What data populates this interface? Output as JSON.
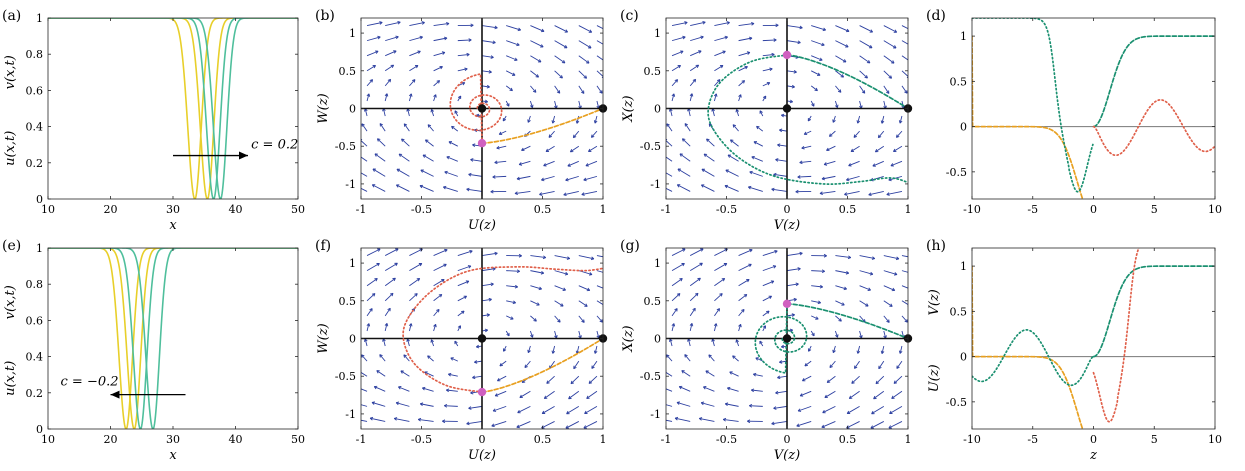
{
  "colors": {
    "yellow": "#e8cf2a",
    "teal": "#4fbf9c",
    "orange": "#e8a020",
    "green": "#1a9070",
    "red": "#e0604a",
    "quiver": "#2c3fa0",
    "pink": "#d060c0",
    "black": "#111111"
  },
  "chart_data": [
    {
      "id": "a",
      "panel_label": "(a)",
      "type": "line",
      "title": "",
      "xlabel": "x",
      "ylabel_parts": [
        "u(x,t)",
        "v(x,t)"
      ],
      "xlim": [
        10,
        50
      ],
      "ylim": [
        0,
        1
      ],
      "xticks": [
        10,
        20,
        30,
        40,
        50
      ],
      "yticks": [
        0,
        0.2,
        0.4,
        0.6,
        0.8,
        1
      ],
      "xtick_labels": [
        "10",
        "20",
        "30",
        "40",
        "50"
      ],
      "ytick_labels": [
        "0",
        "0.2",
        "0.4",
        "0.6",
        "0.8",
        "1"
      ],
      "series": [
        {
          "name": "u(x,t)",
          "color": "yellow",
          "dips_at": [
            33.5,
            35.5
          ],
          "width": 1.6
        },
        {
          "name": "v(x,t)",
          "color": "teal",
          "dips_at": [
            36.5,
            37.6
          ],
          "width": 1.6
        }
      ],
      "annotation": {
        "text": "c = 0.2",
        "arrow_from": [
          30,
          0.24
        ],
        "arrow_to": [
          42,
          0.24
        ],
        "text_at": [
          42.5,
          0.28
        ]
      }
    },
    {
      "id": "b",
      "panel_label": "(b)",
      "type": "phase_plane",
      "xlabel": "U(z)",
      "ylabel": "W(z)",
      "xlim": [
        -1,
        1
      ],
      "ylim": [
        -1.2,
        1.2
      ],
      "xticks": [
        -1,
        -0.5,
        0,
        0.5,
        1
      ],
      "yticks": [
        -1,
        -0.5,
        0,
        0.5,
        1
      ],
      "xtick_labels": [
        "-1",
        "-0.5",
        "0",
        "0.5",
        "1"
      ],
      "ytick_labels": [
        "-1",
        "-0.5",
        "0",
        "0.5",
        "1"
      ],
      "quiver_c": 0.2,
      "trajectories": [
        {
          "name": "dotted spiral",
          "color": "red",
          "style": "dotted",
          "kind": "spiral",
          "start": [
            0,
            -0.46
          ],
          "end": [
            0,
            0
          ],
          "turns": 2.3,
          "stretch_x": 1.3
        },
        {
          "name": "heteroclinic",
          "color": "orange",
          "style": "dashed",
          "kind": "curve",
          "from": [
            0,
            -0.46
          ],
          "to": [
            1,
            0
          ],
          "bulge": 0.15
        }
      ],
      "points": [
        {
          "x": 0,
          "y": 0,
          "color": "black"
        },
        {
          "x": 1,
          "y": 0,
          "color": "black"
        },
        {
          "x": 0,
          "y": -0.46,
          "color": "pink"
        }
      ]
    },
    {
      "id": "c",
      "panel_label": "(c)",
      "type": "phase_plane",
      "xlabel": "V(z)",
      "ylabel": "X(z)",
      "xlim": [
        -1,
        1
      ],
      "ylim": [
        -1.2,
        1.2
      ],
      "xticks": [
        -1,
        -0.5,
        0,
        0.5,
        1
      ],
      "yticks": [
        -1,
        -0.5,
        0,
        0.5,
        1
      ],
      "xtick_labels": [
        "-1",
        "-0.5",
        "0",
        "0.5",
        "1"
      ],
      "ytick_labels": [
        "-1",
        "-0.5",
        "0",
        "0.5",
        "1"
      ],
      "quiver_c": 0.2,
      "trajectories": [
        {
          "name": "heteroclinic",
          "color": "green",
          "style": "dashed",
          "kind": "curve",
          "from": [
            0,
            0.71
          ],
          "to": [
            1,
            0
          ],
          "bulge": 0.12
        },
        {
          "name": "dotted orbit",
          "color": "green",
          "style": "dotted",
          "kind": "orbit_c",
          "points": [
            [
              0,
              0.71
            ],
            [
              -0.3,
              0.62
            ],
            [
              -0.55,
              0.35
            ],
            [
              -0.65,
              0
            ],
            [
              -0.6,
              -0.3
            ],
            [
              -0.4,
              -0.65
            ],
            [
              -0.1,
              -0.9
            ],
            [
              0.3,
              -1.0
            ],
            [
              0.6,
              -0.97
            ],
            [
              0.85,
              -0.92
            ],
            [
              1.0,
              -0.98
            ]
          ]
        }
      ],
      "points": [
        {
          "x": 0,
          "y": 0,
          "color": "black"
        },
        {
          "x": 1,
          "y": 0,
          "color": "black"
        },
        {
          "x": 0,
          "y": 0.71,
          "color": "pink"
        }
      ]
    },
    {
      "id": "d",
      "panel_label": "(d)",
      "type": "line",
      "xlabel": "",
      "ylabel": "",
      "xlim": [
        -10,
        10
      ],
      "ylim": [
        -0.8,
        1.2
      ],
      "xticks": [
        -10,
        -5,
        0,
        5,
        10
      ],
      "yticks": [
        -0.5,
        0,
        0.5,
        1
      ],
      "xtick_labels": [
        "-10",
        "-5",
        "0",
        "5",
        "10"
      ],
      "ytick_labels": [
        "-0.5",
        "0",
        "0.5",
        "1"
      ],
      "zero_line": true,
      "series": [
        {
          "name": "U(z)",
          "color": "orange",
          "style": "dashed",
          "fn": "U_left"
        },
        {
          "name": "V(z)",
          "color": "green",
          "style": "dashed",
          "fn": "V_right"
        },
        {
          "name": "W(z)",
          "color": "red",
          "style": "dotted",
          "fn": "W_osc_right"
        },
        {
          "name": "X(z)",
          "color": "green",
          "style": "dotted",
          "fn": "X_dip_left"
        }
      ]
    },
    {
      "id": "e",
      "panel_label": "(e)",
      "type": "line",
      "xlabel": "x",
      "ylabel_parts": [
        "u(x,t)",
        "v(x,t)"
      ],
      "xlim": [
        10,
        50
      ],
      "ylim": [
        0,
        1
      ],
      "xticks": [
        10,
        20,
        30,
        40,
        50
      ],
      "yticks": [
        0,
        0.2,
        0.4,
        0.6,
        0.8,
        1
      ],
      "xtick_labels": [
        "10",
        "20",
        "30",
        "40",
        "50"
      ],
      "ytick_labels": [
        "0",
        "0.2",
        "0.4",
        "0.6",
        "0.8",
        "1"
      ],
      "series": [
        {
          "name": "u(x,t)",
          "color": "yellow",
          "dips_at": [
            22.5,
            23.8
          ],
          "width": 1.6
        },
        {
          "name": "v(x,t)",
          "color": "teal",
          "dips_at": [
            24.8,
            26.8
          ],
          "width": 1.6
        }
      ],
      "annotation": {
        "text": "c = −0.2",
        "arrow_from": [
          32,
          0.19
        ],
        "arrow_to": [
          20,
          0.19
        ],
        "text_at": [
          12,
          0.24
        ]
      }
    },
    {
      "id": "f",
      "panel_label": "(f)",
      "type": "phase_plane",
      "xlabel": "U(z)",
      "ylabel": "W(z)",
      "xlim": [
        -1,
        1
      ],
      "ylim": [
        -1.2,
        1.2
      ],
      "xticks": [
        -1,
        -0.5,
        0,
        0.5,
        1
      ],
      "yticks": [
        -1,
        -0.5,
        0,
        0.5,
        1
      ],
      "xtick_labels": [
        "-1",
        "-0.5",
        "0",
        "0.5",
        "1"
      ],
      "ytick_labels": [
        "-1",
        "-0.5",
        "0",
        "0.5",
        "1"
      ],
      "quiver_c": -0.2,
      "trajectories": [
        {
          "name": "heteroclinic",
          "color": "orange",
          "style": "dashed",
          "kind": "curve",
          "from": [
            0,
            -0.71
          ],
          "to": [
            1,
            0
          ],
          "bulge": 0.12
        },
        {
          "name": "dotted orbit",
          "color": "red",
          "style": "dotted",
          "kind": "orbit_f",
          "points": [
            [
              0,
              -0.71
            ],
            [
              -0.3,
              -0.62
            ],
            [
              -0.55,
              -0.35
            ],
            [
              -0.65,
              0
            ],
            [
              -0.6,
              0.3
            ],
            [
              -0.4,
              0.65
            ],
            [
              -0.1,
              0.9
            ],
            [
              0.3,
              0.95
            ],
            [
              0.6,
              0.92
            ],
            [
              0.85,
              0.9
            ],
            [
              1.0,
              0.93
            ]
          ]
        }
      ],
      "points": [
        {
          "x": 0,
          "y": 0,
          "color": "black"
        },
        {
          "x": 1,
          "y": 0,
          "color": "black"
        },
        {
          "x": 0,
          "y": -0.71,
          "color": "pink"
        }
      ]
    },
    {
      "id": "g",
      "panel_label": "(g)",
      "type": "phase_plane",
      "xlabel": "V(z)",
      "ylabel": "X(z)",
      "xlim": [
        -1,
        1
      ],
      "ylim": [
        -1.2,
        1.2
      ],
      "xticks": [
        -1,
        -0.5,
        0,
        0.5,
        1
      ],
      "yticks": [
        -1,
        -0.5,
        0,
        0.5,
        1
      ],
      "xtick_labels": [
        "-1",
        "-0.5",
        "0",
        "0.5",
        "1"
      ],
      "ytick_labels": [
        "-1",
        "-0.5",
        "0",
        "0.5",
        "1"
      ],
      "quiver_c": -0.2,
      "trajectories": [
        {
          "name": "dotted spiral",
          "color": "green",
          "style": "dotted",
          "kind": "spiral",
          "start": [
            0,
            0.46
          ],
          "end": [
            0,
            0
          ],
          "turns": 2.3,
          "stretch_x": 1.3
        },
        {
          "name": "heteroclinic",
          "color": "green",
          "style": "dashed",
          "kind": "curve",
          "from": [
            0,
            0.46
          ],
          "to": [
            1,
            0
          ],
          "bulge": 0.1
        }
      ],
      "points": [
        {
          "x": 0,
          "y": 0,
          "color": "black"
        },
        {
          "x": 1,
          "y": 0,
          "color": "black"
        },
        {
          "x": 0,
          "y": 0.46,
          "color": "pink"
        }
      ]
    },
    {
      "id": "h",
      "panel_label": "(h)",
      "type": "line",
      "xlabel": "z",
      "ylabel_parts": [
        "U(z)",
        "V(z)"
      ],
      "xlim": [
        -10,
        10
      ],
      "ylim": [
        -0.8,
        1.2
      ],
      "xticks": [
        -10,
        -5,
        0,
        5,
        10
      ],
      "yticks": [
        -0.5,
        0,
        0.5,
        1
      ],
      "xtick_labels": [
        "-10",
        "-5",
        "0",
        "5",
        "10"
      ],
      "ytick_labels": [
        "-0.5",
        "0",
        "0.5",
        "1"
      ],
      "zero_line": true,
      "series": [
        {
          "name": "U(z)",
          "color": "orange",
          "style": "dashed",
          "fn": "U_left"
        },
        {
          "name": "V(z)",
          "color": "green",
          "style": "dashed",
          "fn": "V_right"
        },
        {
          "name": "W(z)",
          "color": "red",
          "style": "dotted",
          "fn": "W_rise_right"
        },
        {
          "name": "X(z)",
          "color": "green",
          "style": "dotted",
          "fn": "X_osc_left"
        }
      ]
    }
  ]
}
